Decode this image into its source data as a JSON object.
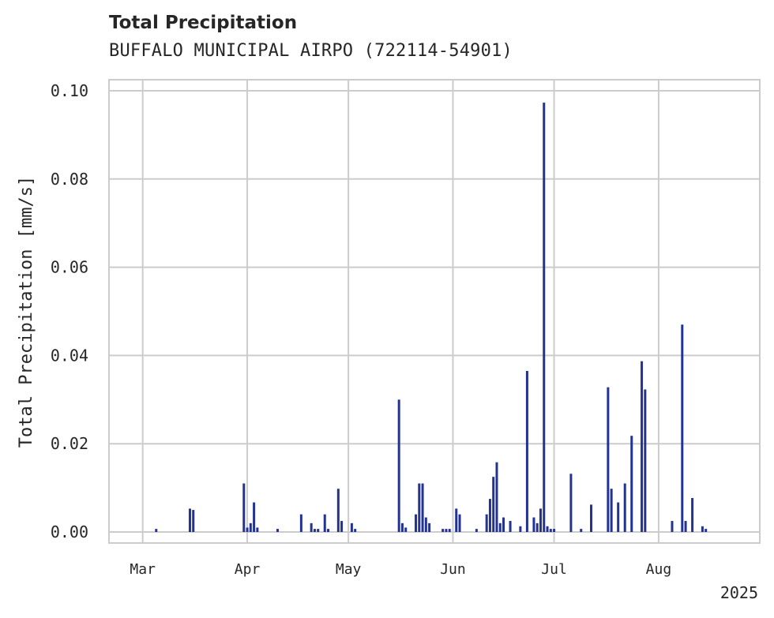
{
  "chart_data": {
    "type": "bar",
    "title": "Total Precipitation",
    "subtitle": "BUFFALO MUNICIPAL AIRPO (722114-54901)",
    "xlabel": "",
    "ylabel": "Total Precipitation [mm/s]",
    "year_label": "2025",
    "x_range": [
      "2025-02-19",
      "2025-08-31"
    ],
    "ylim": [
      -0.0025,
      0.1025
    ],
    "yticks": [
      0.0,
      0.02,
      0.04,
      0.06,
      0.08,
      0.1
    ],
    "ytick_labels": [
      "0.00",
      "0.02",
      "0.04",
      "0.06",
      "0.08",
      "0.10"
    ],
    "xticks": [
      "2025-03-01",
      "2025-04-01",
      "2025-05-01",
      "2025-06-01",
      "2025-07-01",
      "2025-08-01"
    ],
    "xtick_labels": [
      "Mar",
      "Apr",
      "May",
      "Jun",
      "Jul",
      "Aug"
    ],
    "grid": true,
    "color": "#233391",
    "series": [
      {
        "name": "Total Precipitation",
        "x": [
          "2025-03-05",
          "2025-03-15",
          "2025-03-16",
          "2025-03-31",
          "2025-04-01",
          "2025-04-02",
          "2025-04-03",
          "2025-04-04",
          "2025-04-10",
          "2025-04-17",
          "2025-04-20",
          "2025-04-21",
          "2025-04-22",
          "2025-04-24",
          "2025-04-25",
          "2025-04-28",
          "2025-04-29",
          "2025-05-02",
          "2025-05-03",
          "2025-05-16",
          "2025-05-17",
          "2025-05-18",
          "2025-05-21",
          "2025-05-22",
          "2025-05-23",
          "2025-05-24",
          "2025-05-25",
          "2025-05-29",
          "2025-05-30",
          "2025-05-31",
          "2025-06-02",
          "2025-06-03",
          "2025-06-08",
          "2025-06-11",
          "2025-06-12",
          "2025-06-13",
          "2025-06-14",
          "2025-06-15",
          "2025-06-16",
          "2025-06-18",
          "2025-06-21",
          "2025-06-23",
          "2025-06-25",
          "2025-06-26",
          "2025-06-27",
          "2025-06-28",
          "2025-06-29",
          "2025-06-30",
          "2025-07-01",
          "2025-07-06",
          "2025-07-09",
          "2025-07-12",
          "2025-07-17",
          "2025-07-18",
          "2025-07-20",
          "2025-07-22",
          "2025-07-24",
          "2025-07-27",
          "2025-07-28",
          "2025-08-05",
          "2025-08-08",
          "2025-08-09",
          "2025-08-11",
          "2025-08-14",
          "2025-08-15"
        ],
        "values": [
          0.0007,
          0.0053,
          0.005,
          0.011,
          0.001,
          0.002,
          0.0067,
          0.001,
          0.0007,
          0.004,
          0.002,
          0.0007,
          0.0007,
          0.004,
          0.0007,
          0.0098,
          0.0025,
          0.002,
          0.0007,
          0.03,
          0.002,
          0.001,
          0.004,
          0.011,
          0.011,
          0.0033,
          0.002,
          0.0007,
          0.0007,
          0.0007,
          0.0053,
          0.004,
          0.0007,
          0.004,
          0.0075,
          0.0125,
          0.0158,
          0.002,
          0.0033,
          0.0025,
          0.0013,
          0.0365,
          0.0033,
          0.002,
          0.0053,
          0.0973,
          0.0013,
          0.0007,
          0.0007,
          0.0132,
          0.0007,
          0.0062,
          0.0328,
          0.0098,
          0.0067,
          0.011,
          0.0218,
          0.0387,
          0.0323,
          0.0025,
          0.047,
          0.0025,
          0.0077,
          0.0013,
          0.0007
        ]
      }
    ]
  }
}
